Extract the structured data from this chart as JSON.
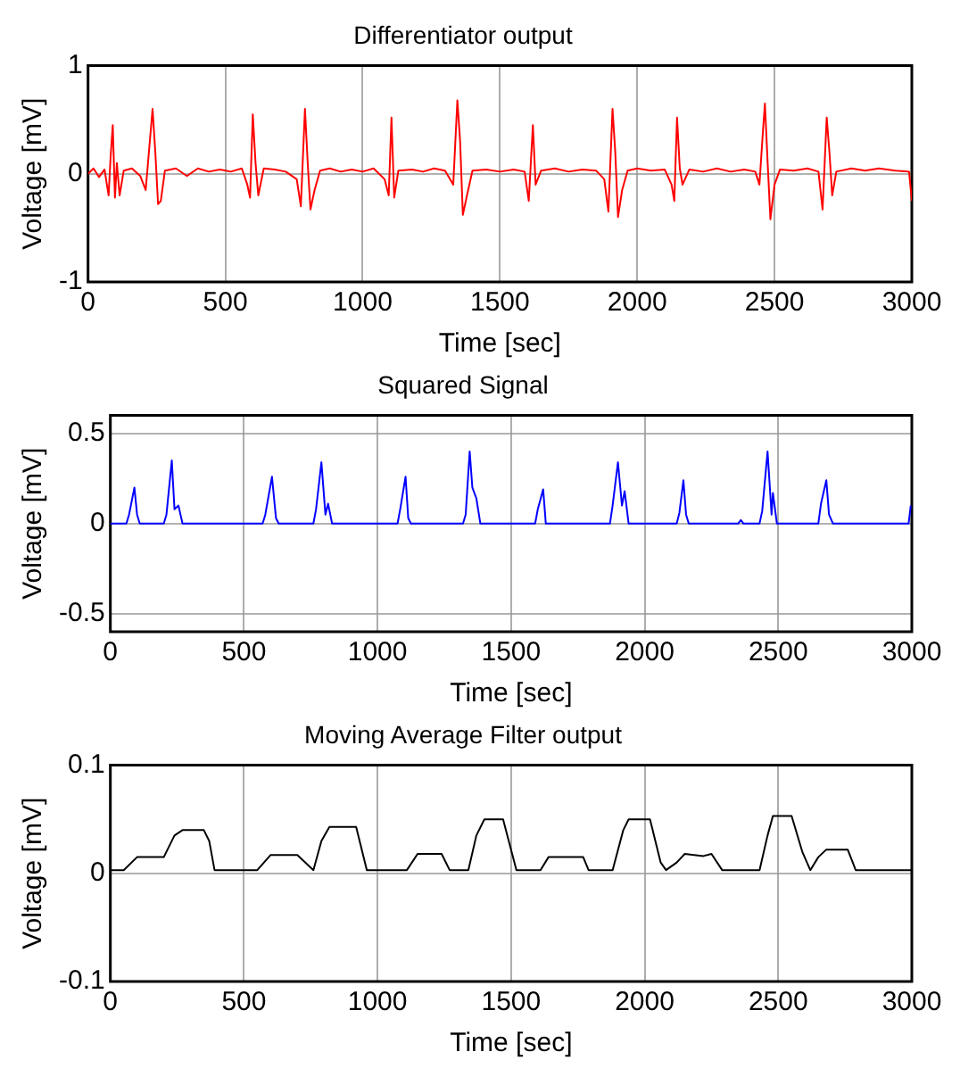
{
  "chart_data": [
    {
      "type": "line",
      "title": "Differentiator output",
      "xlabel": "Time [sec]",
      "ylabel": "Voltage [mV]",
      "xlim": [
        0,
        3000
      ],
      "xticks": [
        0,
        500,
        1000,
        1500,
        2000,
        2500,
        3000
      ],
      "ylim": [
        -1,
        1
      ],
      "yticks": [
        -1,
        0,
        1
      ],
      "grid": true,
      "legend": false,
      "x": [
        0,
        20,
        40,
        60,
        75,
        82,
        90,
        98,
        105,
        115,
        130,
        160,
        190,
        210,
        225,
        235,
        245,
        255,
        265,
        280,
        320,
        360,
        400,
        440,
        480,
        520,
        560,
        580,
        590,
        600,
        610,
        620,
        640,
        680,
        720,
        760,
        775,
        790,
        800,
        810,
        825,
        845,
        880,
        920,
        960,
        1000,
        1040,
        1080,
        1095,
        1105,
        1115,
        1130,
        1180,
        1220,
        1260,
        1300,
        1330,
        1345,
        1355,
        1365,
        1380,
        1400,
        1450,
        1500,
        1550,
        1590,
        1605,
        1620,
        1630,
        1650,
        1700,
        1750,
        1800,
        1850,
        1880,
        1895,
        1910,
        1920,
        1930,
        1945,
        1965,
        2000,
        2050,
        2100,
        2125,
        2135,
        2145,
        2155,
        2165,
        2190,
        2240,
        2290,
        2340,
        2390,
        2430,
        2445,
        2458,
        2465,
        2475,
        2485,
        2500,
        2520,
        2570,
        2620,
        2660,
        2675,
        2690,
        2700,
        2710,
        2725,
        2780,
        2830,
        2880,
        2940,
        2990,
        3000
      ],
      "series": [
        {
          "color": "#ff0000",
          "values": [
            0,
            0.05,
            -0.03,
            0.04,
            -0.2,
            0.15,
            0.45,
            -0.22,
            0.1,
            -0.2,
            0.03,
            0.05,
            -0.02,
            -0.15,
            0.3,
            0.6,
            0.2,
            -0.28,
            -0.25,
            0.03,
            0.05,
            -0.02,
            0.05,
            0.02,
            0.04,
            0.02,
            0.05,
            -0.1,
            -0.22,
            0.55,
            0.1,
            -0.2,
            0.05,
            0.04,
            0.02,
            -0.05,
            -0.3,
            0.6,
            0.1,
            -0.33,
            -0.15,
            0.03,
            0.05,
            0.02,
            0.04,
            0.02,
            0.05,
            -0.05,
            -0.2,
            0.52,
            -0.22,
            0.03,
            0.04,
            0.02,
            0.05,
            0.03,
            -0.1,
            0.68,
            0.3,
            -0.38,
            -0.2,
            0.03,
            0.04,
            0.02,
            0.04,
            0.02,
            -0.25,
            0.45,
            -0.1,
            0.03,
            0.05,
            0.02,
            0.04,
            0.03,
            -0.05,
            -0.35,
            0.6,
            0.2,
            -0.4,
            -0.15,
            0.03,
            0.05,
            0.03,
            0.04,
            -0.1,
            -0.25,
            0.52,
            0.05,
            -0.1,
            0.04,
            0.02,
            0.05,
            0.02,
            0.04,
            0.02,
            -0.1,
            0.4,
            0.65,
            0.1,
            -0.42,
            -0.1,
            0.04,
            0.03,
            0.05,
            0.02,
            -0.33,
            0.52,
            0.2,
            -0.2,
            0.02,
            0.05,
            0.03,
            0.05,
            0.03,
            0.02,
            -0.25
          ]
        }
      ]
    },
    {
      "type": "line",
      "title": "Squared Signal",
      "xlabel": "Time [sec]",
      "ylabel": "Voltage [mV]",
      "xlim": [
        0,
        3000
      ],
      "xticks": [
        0,
        500,
        1000,
        1500,
        2000,
        2500,
        3000
      ],
      "ylim": [
        -0.6,
        0.6
      ],
      "yticks": [
        -0.5,
        0,
        0.5
      ],
      "grid": true,
      "legend": false,
      "x": [
        0,
        60,
        70,
        90,
        100,
        110,
        200,
        210,
        230,
        240,
        255,
        270,
        570,
        580,
        605,
        620,
        630,
        760,
        770,
        790,
        805,
        815,
        830,
        1075,
        1085,
        1105,
        1115,
        1125,
        1320,
        1330,
        1345,
        1355,
        1370,
        1385,
        1590,
        1600,
        1620,
        1630,
        1870,
        1880,
        1900,
        1915,
        1925,
        1940,
        2120,
        2130,
        2145,
        2155,
        2165,
        2350,
        2360,
        2370,
        2430,
        2440,
        2460,
        2475,
        2480,
        2495,
        2650,
        2660,
        2680,
        2690,
        2705,
        2988,
        2996
      ],
      "series": [
        {
          "color": "#0000ff",
          "values": [
            0,
            0,
            0.05,
            0.2,
            0.05,
            0,
            0,
            0.05,
            0.35,
            0.08,
            0.1,
            0,
            0,
            0.05,
            0.26,
            0.03,
            0,
            0,
            0.08,
            0.34,
            0.05,
            0.11,
            0,
            0,
            0.08,
            0.26,
            0.03,
            0,
            0,
            0.05,
            0.4,
            0.2,
            0.14,
            0,
            0,
            0.08,
            0.19,
            0,
            0,
            0.1,
            0.34,
            0.1,
            0.18,
            0,
            0,
            0.06,
            0.24,
            0.05,
            0,
            0,
            0.02,
            0,
            0,
            0.07,
            0.4,
            0.05,
            0.17,
            0,
            0,
            0.11,
            0.24,
            0.05,
            0,
            0,
            0.1
          ]
        }
      ]
    },
    {
      "type": "line",
      "title": "Moving Average Filter output",
      "xlabel": "Time [sec]",
      "ylabel": "Voltage [mV]",
      "xlim": [
        0,
        3000
      ],
      "xticks": [
        0,
        500,
        1000,
        1500,
        2000,
        2500,
        3000
      ],
      "ylim": [
        -0.1,
        0.1
      ],
      "yticks": [
        -0.1,
        0,
        0.1
      ],
      "grid": true,
      "legend": false,
      "x": [
        0,
        50,
        100,
        200,
        240,
        270,
        350,
        370,
        390,
        550,
        600,
        700,
        760,
        790,
        820,
        920,
        960,
        1110,
        1150,
        1240,
        1270,
        1340,
        1370,
        1400,
        1470,
        1520,
        1610,
        1640,
        1770,
        1790,
        1880,
        1920,
        1940,
        2020,
        2060,
        2080,
        2120,
        2150,
        2220,
        2250,
        2290,
        2430,
        2460,
        2480,
        2550,
        2590,
        2620,
        2650,
        2680,
        2760,
        2790,
        3000
      ],
      "series": [
        {
          "color": "#000000",
          "values": [
            0.003,
            0.003,
            0.015,
            0.015,
            0.035,
            0.04,
            0.04,
            0.03,
            0.003,
            0.003,
            0.017,
            0.017,
            0.003,
            0.03,
            0.043,
            0.043,
            0.003,
            0.003,
            0.018,
            0.018,
            0.003,
            0.003,
            0.035,
            0.05,
            0.05,
            0.003,
            0.003,
            0.015,
            0.015,
            0.003,
            0.003,
            0.04,
            0.05,
            0.05,
            0.01,
            0.003,
            0.01,
            0.018,
            0.016,
            0.018,
            0.003,
            0.003,
            0.035,
            0.053,
            0.053,
            0.02,
            0.003,
            0.015,
            0.022,
            0.022,
            0.003,
            0.003
          ]
        }
      ]
    }
  ]
}
